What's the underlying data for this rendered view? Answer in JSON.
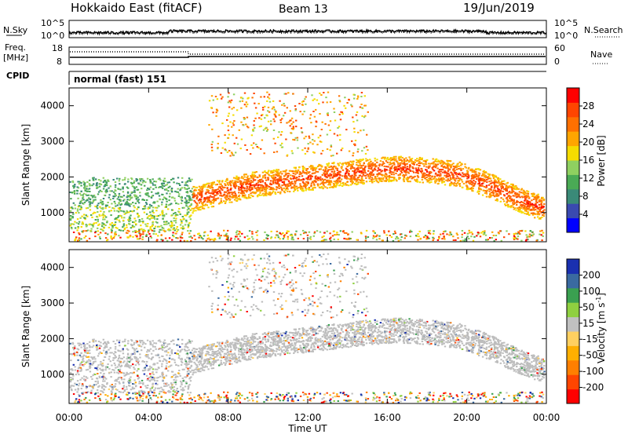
{
  "header": {
    "station": "Hokkaido East (fitACF)",
    "beam": "Beam 13",
    "date": "19/Jun/2019"
  },
  "top_panels": {
    "nsky_label": "N.Sky",
    "nsky_ticks": [
      "10^5",
      "10^0"
    ],
    "nsearch_label": "N.Search",
    "nsearch_ticks": [
      "10^5",
      "10^0"
    ],
    "freq_label_1": "Freq.",
    "freq_label_2": "[MHz]",
    "freq_ticks": [
      "18",
      "8"
    ],
    "nave_label": "Nave",
    "nave_ticks": [
      "60",
      "0"
    ],
    "cpid_label": "CPID",
    "cpid_text": "normal (fast) 151"
  },
  "colors": {
    "power_scale": [
      "#0000ff",
      "#3a4ab0",
      "#3a8a78",
      "#4aaa55",
      "#8fd060",
      "#f5dc00",
      "#ffa500",
      "#ff7000",
      "#ff4500",
      "#ff0000"
    ],
    "velocity_scale": [
      "#ff0000",
      "#ff4500",
      "#ff7f00",
      "#ffaf00",
      "#ffd060",
      "#c0c0c0",
      "#8fd040",
      "#3aa050",
      "#3a6aa0",
      "#1a30b0"
    ],
    "ground_scatter": "#bdbdbd"
  },
  "chart_data": [
    {
      "type": "heatmap",
      "title": "Power",
      "ylabel": "Slant Range [km]",
      "xlabel": "Time UT",
      "xticks": [
        "00:00",
        "04:00",
        "08:00",
        "12:00",
        "16:00",
        "20:00",
        "00:00"
      ],
      "xlim_hours": [
        0,
        24
      ],
      "ylim_km": [
        180,
        4500
      ],
      "yticks": [
        1000,
        2000,
        3000,
        4000
      ],
      "colorbar": {
        "label": "Power [dB]",
        "ticks": [
          "4",
          "8",
          "12",
          "16",
          "20",
          "24",
          "28"
        ],
        "range": [
          0,
          30
        ]
      },
      "features": [
        {
          "name": "main-echo-band",
          "t_start": 6.2,
          "t_end": 24,
          "range_km_center": [
            1400,
            1600,
            1800,
            1900,
            2000,
            2100,
            2200,
            2250,
            2200,
            2100,
            1800,
            1400,
            1100
          ],
          "power_db": 28
        },
        {
          "name": "early-scatter",
          "t_start": 0,
          "t_end": 6.2,
          "range_km_center": 1050,
          "power_db": 10
        }
      ]
    },
    {
      "type": "heatmap",
      "title": "Velocity",
      "ylabel": "Slant Range [km]",
      "xlabel": "Time UT",
      "xticks": [
        "00:00",
        "04:00",
        "08:00",
        "12:00",
        "16:00",
        "20:00",
        "00:00"
      ],
      "xlim_hours": [
        0,
        24
      ],
      "ylim_km": [
        180,
        4500
      ],
      "yticks": [
        1000,
        2000,
        3000,
        4000
      ],
      "colorbar": {
        "label": "Velocity [m s^-1]",
        "ticks": [
          "200",
          "100",
          "50",
          "15",
          "-15",
          "-50",
          "-100",
          "-200"
        ],
        "range": [
          -250,
          250
        ]
      },
      "features": [
        {
          "name": "ground-scatter-band",
          "t_start": 6.2,
          "t_end": 24,
          "velocity": 0
        },
        {
          "name": "early-scatter",
          "t_start": 0,
          "t_end": 6.2,
          "velocity": 0
        }
      ]
    }
  ]
}
